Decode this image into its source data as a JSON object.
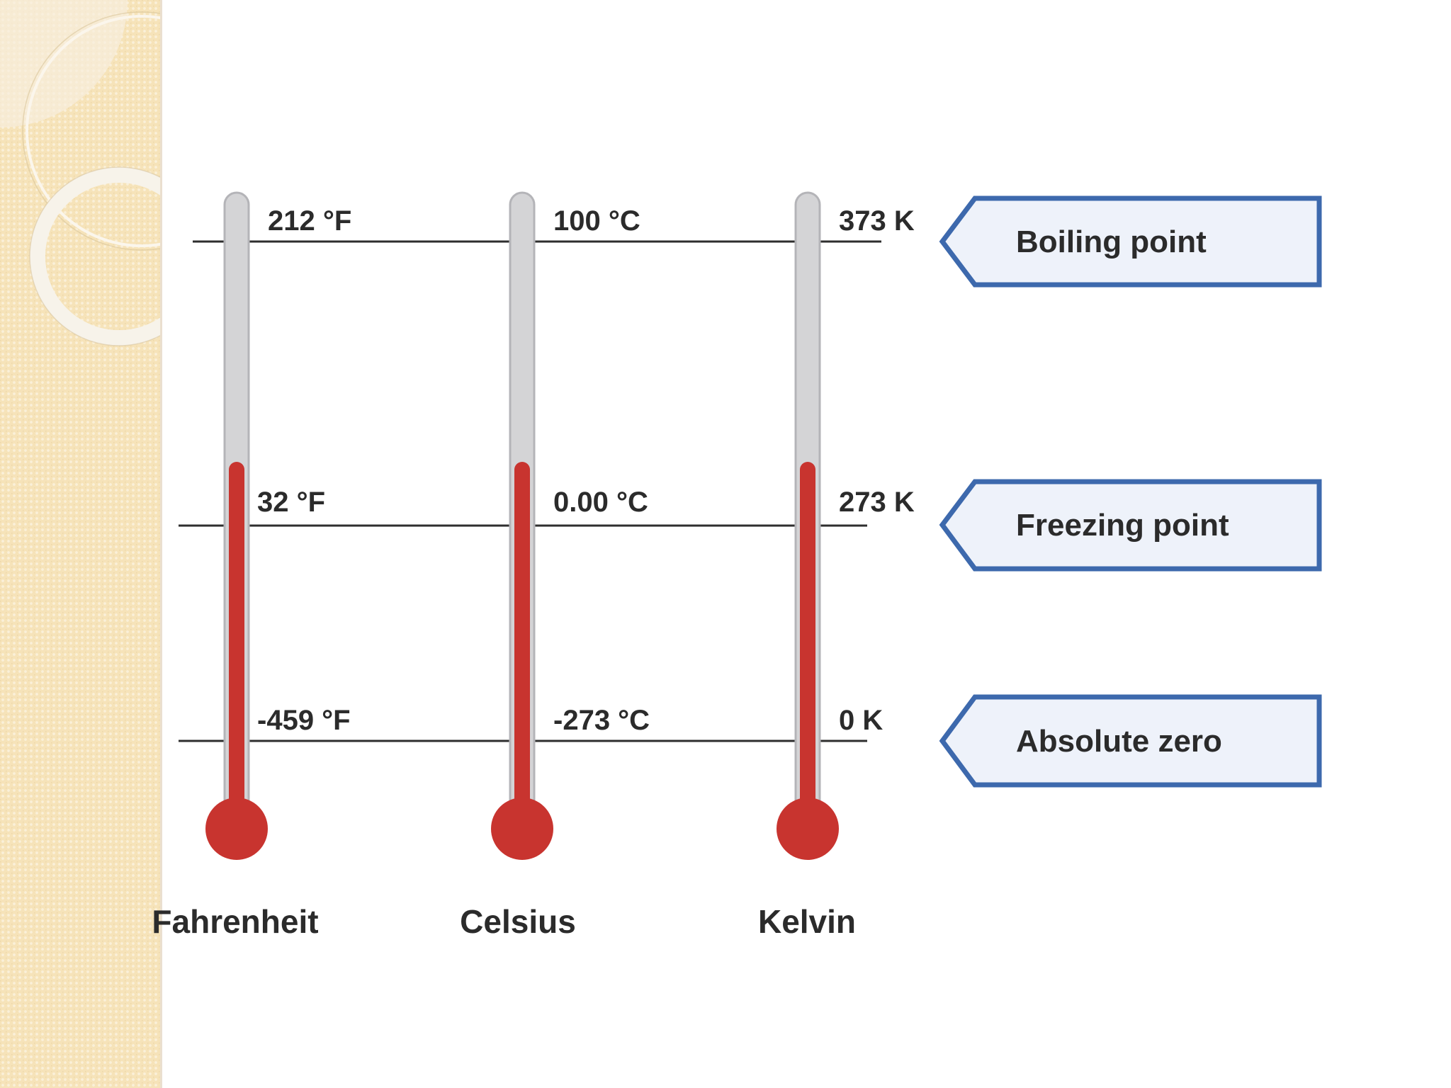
{
  "scales": [
    {
      "name": "Fahrenheit",
      "boiling": "212 °F",
      "freezing": "32 °F",
      "absolute_zero": "-459 °F"
    },
    {
      "name": "Celsius",
      "boiling": "100 °C",
      "freezing": "0.00 °C",
      "absolute_zero": "-273 °C"
    },
    {
      "name": "Kelvin",
      "boiling": "373 K",
      "freezing": "273 K",
      "absolute_zero": "0 K"
    }
  ],
  "callouts": {
    "boiling": "Boiling point",
    "freezing": "Freezing point",
    "absolute_zero": "Absolute zero"
  },
  "colors": {
    "mercury": "#c8342f",
    "tube": "#d4d4d6",
    "tube_border": "#b4b4b8",
    "callout_fill": "#eef2fa",
    "callout_border": "#3d69ad",
    "line": "#2e2e2e",
    "background_strip": "#f6e3b9"
  }
}
